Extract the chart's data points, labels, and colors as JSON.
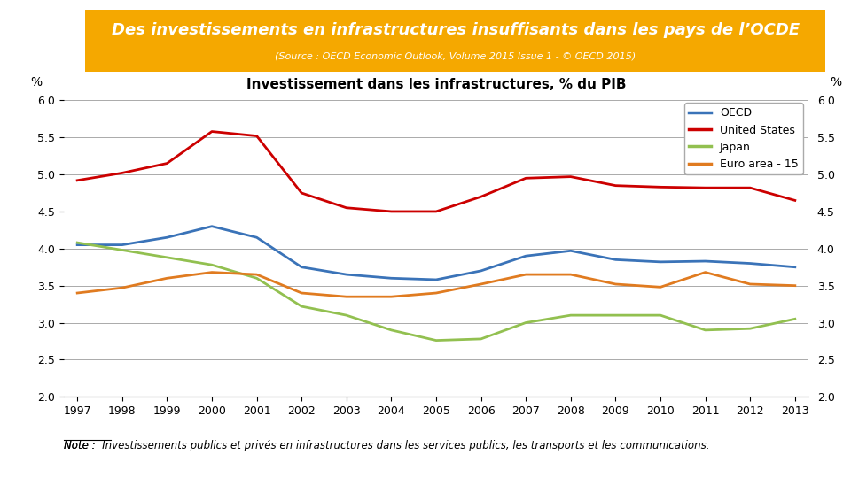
{
  "title": "Des investissements en infrastructures insuffisants dans les pays de l’OCDE",
  "source": "(Source : OECD Economic Outlook, Volume 2015 Issue 1 - © OECD 2015",
  "chart_title": "Investissement dans les infrastructures, % du PIB",
  "ylabel_left": "%",
  "ylabel_right": "%",
  "note": "Note :  Investissements publics et privés en infrastructures dans les services publics, les transports et les communications.",
  "title_bg_color": "#F5A800",
  "title_text_color": "#FFFFFF",
  "years": [
    1997,
    1998,
    1999,
    2000,
    2001,
    2002,
    2003,
    2004,
    2005,
    2006,
    2007,
    2008,
    2009,
    2010,
    2011,
    2012,
    2013
  ],
  "OECD": [
    4.05,
    4.05,
    4.15,
    4.3,
    4.15,
    3.75,
    3.65,
    3.6,
    3.58,
    3.7,
    3.9,
    3.97,
    3.85,
    3.82,
    3.83,
    3.8,
    3.75
  ],
  "United_States": [
    4.92,
    5.02,
    5.15,
    5.58,
    5.52,
    4.75,
    4.55,
    4.5,
    4.5,
    4.7,
    4.95,
    4.97,
    4.85,
    4.83,
    4.82,
    4.82,
    4.65
  ],
  "Japan": [
    4.08,
    3.98,
    3.88,
    3.78,
    3.6,
    3.22,
    3.1,
    2.9,
    2.76,
    2.78,
    3.0,
    3.1,
    3.1,
    3.1,
    2.9,
    2.92,
    3.05
  ],
  "Euro_area_15": [
    3.4,
    3.47,
    3.6,
    3.68,
    3.65,
    3.4,
    3.35,
    3.35,
    3.4,
    3.52,
    3.65,
    3.65,
    3.52,
    3.48,
    3.68,
    3.52,
    3.5
  ],
  "colors": {
    "OECD": "#3A73B8",
    "United_States": "#CC0000",
    "Japan": "#92C050",
    "Euro_area_15": "#E07B20"
  },
  "ylim": [
    2.0,
    6.0
  ],
  "yticks": [
    2.0,
    2.5,
    3.0,
    3.5,
    4.0,
    4.5,
    5.0,
    5.5,
    6.0
  ],
  "background_color": "#FFFFFF",
  "line_width": 2.0
}
